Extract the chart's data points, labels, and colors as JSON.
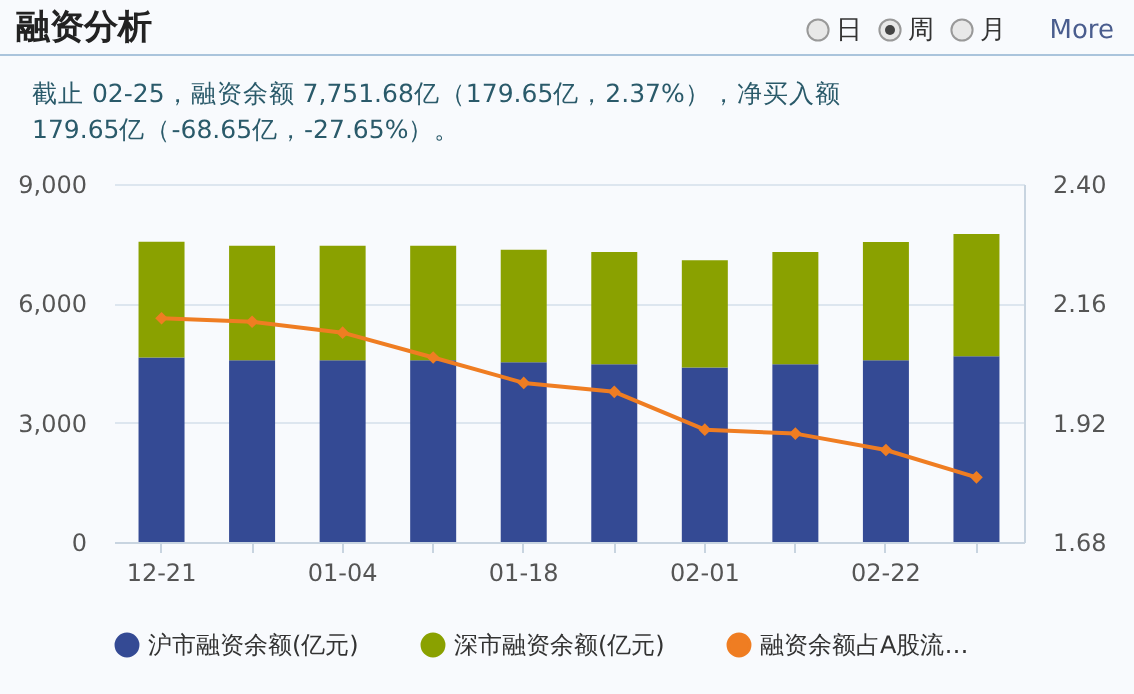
{
  "chart_data": {
    "type": "bar",
    "title": "融资分析",
    "subtitle": "截止 02-25，融资余额 7,751.68亿（179.65亿，2.37%），净买入额 179.65亿（-68.65亿，-27.65%）。",
    "annotations": [
      "日",
      "周",
      "月",
      "More"
    ],
    "categories": [
      "12-21",
      null,
      "01-04",
      null,
      "01-18",
      null,
      "02-01",
      null,
      "02-22",
      null
    ],
    "stacked": true,
    "series": [
      {
        "name": "沪市融资余额(亿元)",
        "color": "#344a94",
        "values": [
          4640,
          4570,
          4570,
          4570,
          4520,
          4470,
          4390,
          4470,
          4570,
          4670
        ]
      },
      {
        "name": "深市融资余额(亿元)",
        "color": "#8aa100",
        "values": [
          2910,
          2880,
          2880,
          2880,
          2830,
          2820,
          2690,
          2820,
          2970,
          3070
        ]
      },
      {
        "name": "融资余额占A股流…",
        "type": "line",
        "axis": "y2",
        "color": "#ef7d22",
        "values": [
          2.13,
          2.123,
          2.101,
          2.051,
          2.0,
          1.982,
          1.906,
          1.898,
          1.865,
          1.81
        ]
      }
    ],
    "ylim": [
      0,
      9000
    ],
    "yticks": [
      0,
      {
        "value": 3000,
        "label": "3,000"
      },
      {
        "value": 6000,
        "label": "6,000"
      },
      {
        "value": 9000,
        "label": "9,000"
      }
    ],
    "y2lim": [
      1.68,
      2.4
    ],
    "y2ticks": [
      1.68,
      1.92,
      2.16,
      {
        "value": 2.4,
        "label": "2.40"
      }
    ],
    "grid": "y",
    "legend": "bottom",
    "marker": "diamond"
  }
}
